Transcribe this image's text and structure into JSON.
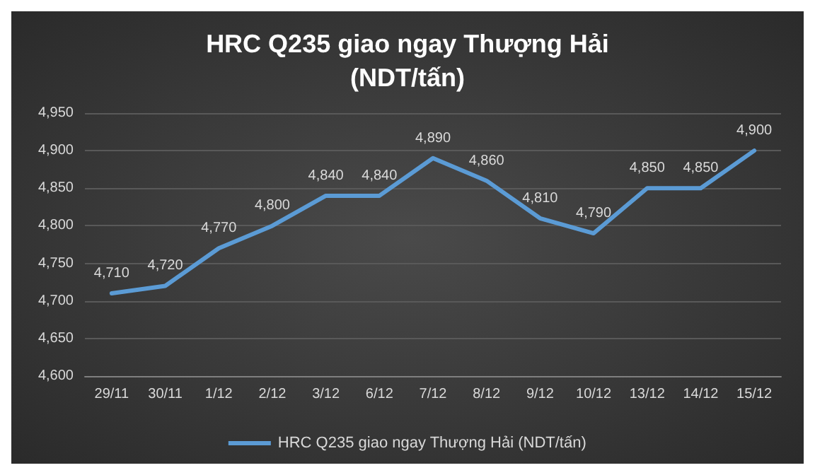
{
  "chart_data": {
    "type": "line",
    "title": "HRC Q235 giao ngay Thượng Hải\n(NDT/tấn)",
    "categories": [
      "29/11",
      "30/11",
      "1/12",
      "2/12",
      "3/12",
      "6/12",
      "7/12",
      "8/12",
      "9/12",
      "10/12",
      "13/12",
      "14/12",
      "15/12"
    ],
    "series": [
      {
        "name": "HRC Q235 giao ngay Thượng Hải (NDT/tấn)",
        "color": "#5b9bd5",
        "values": [
          4710,
          4720,
          4770,
          4800,
          4840,
          4840,
          4890,
          4860,
          4810,
          4790,
          4850,
          4850,
          4900
        ],
        "value_labels": [
          "4,710",
          "4,720",
          "4,770",
          "4,800",
          "4,840",
          "4,840",
          "4,890",
          "4,860",
          "4,810",
          "4,790",
          "4,850",
          "4,850",
          "4,900"
        ]
      }
    ],
    "ylim": [
      4600,
      4950
    ],
    "yticks": [
      {
        "value": 4600,
        "label": "4,600"
      },
      {
        "value": 4650,
        "label": "4,650"
      },
      {
        "value": 4700,
        "label": "4,700"
      },
      {
        "value": 4750,
        "label": "4,750"
      },
      {
        "value": 4800,
        "label": "4,800"
      },
      {
        "value": 4850,
        "label": "4,850"
      },
      {
        "value": 4900,
        "label": "4,900"
      },
      {
        "value": 4950,
        "label": "4,950"
      }
    ],
    "grid": "y",
    "legend": "bottom",
    "marker": "none",
    "line_style": "solid"
  }
}
